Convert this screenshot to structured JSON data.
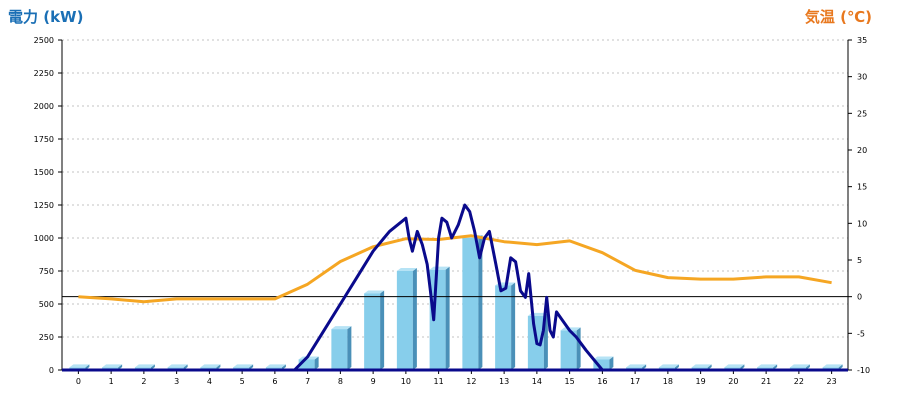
{
  "colors": {
    "left_title": "#1a6fb5",
    "right_title": "#e8781e",
    "bar_front": "#87ceeb",
    "bar_side": "#4a90b8",
    "bar_top": "#b6e3f5",
    "line_power": "#0a0a8c",
    "line_temp": "#f5a623",
    "grid": "#b0b0b0",
    "axis": "#000000",
    "tick_text": "#000000"
  },
  "chart_data": {
    "type": "bar",
    "left_axis_title": "電力 (kW)",
    "right_axis_title": "気温 (℃)",
    "categories": [
      "0",
      "1",
      "2",
      "3",
      "4",
      "5",
      "6",
      "7",
      "8",
      "9",
      "10",
      "11",
      "12",
      "13",
      "14",
      "15",
      "16",
      "17",
      "18",
      "19",
      "20",
      "21",
      "22",
      "23"
    ],
    "left_ticks": [
      "0",
      "250",
      "500",
      "750",
      "1000",
      "1250",
      "1500",
      "1750",
      "2000",
      "2250",
      "2500"
    ],
    "right_ticks": [
      "-10",
      "-5",
      "0",
      "5",
      "10",
      "15",
      "20",
      "25",
      "30",
      "35"
    ],
    "left_range": [
      0,
      2500
    ],
    "right_range": [
      -10,
      35
    ],
    "grid": true,
    "series": [
      {
        "kind": "bar",
        "axis": "left",
        "values": [
          20,
          20,
          20,
          20,
          20,
          20,
          20,
          80,
          310,
          580,
          750,
          760,
          1000,
          640,
          410,
          300,
          80,
          20,
          20,
          20,
          20,
          20,
          20,
          20
        ]
      },
      {
        "kind": "line",
        "axis": "left",
        "x": [
          6.6,
          7.0,
          7.5,
          8.0,
          8.5,
          9.0,
          9.5,
          10.0,
          10.1,
          10.2,
          10.35,
          10.5,
          10.65,
          10.75,
          10.85,
          11.0,
          11.1,
          11.25,
          11.4,
          11.6,
          11.8,
          11.95,
          12.1,
          12.25,
          12.4,
          12.55,
          12.75,
          12.9,
          13.05,
          13.2,
          13.35,
          13.5,
          13.65,
          13.75,
          13.9,
          14.0,
          14.1,
          14.2,
          14.3,
          14.4,
          14.5,
          14.6,
          14.8,
          15.0,
          15.2,
          15.5,
          16.0,
          16.5
        ],
        "y": [
          0,
          100,
          300,
          500,
          700,
          900,
          1050,
          1150,
          1000,
          900,
          1050,
          950,
          800,
          600,
          380,
          1000,
          1150,
          1120,
          1000,
          1100,
          1250,
          1200,
          1050,
          850,
          1000,
          1050,
          800,
          600,
          620,
          850,
          820,
          600,
          550,
          730,
          350,
          200,
          190,
          300,
          550,
          300,
          250,
          440,
          370,
          300,
          250,
          150,
          0,
          0
        ]
      },
      {
        "kind": "line",
        "axis": "right",
        "x": [
          0,
          1,
          2,
          3,
          4,
          5,
          6,
          7,
          8,
          9,
          10,
          11,
          12,
          13,
          14,
          15,
          16,
          17,
          18,
          19,
          20,
          21,
          22,
          23
        ],
        "y": [
          0,
          -0.3,
          -0.7,
          -0.3,
          -0.3,
          -0.3,
          -0.3,
          1.7,
          4.8,
          6.8,
          7.9,
          7.8,
          8.3,
          7.5,
          7.1,
          7.6,
          6.0,
          3.6,
          2.6,
          2.4,
          2.4,
          2.7,
          2.7,
          1.9
        ]
      }
    ]
  }
}
